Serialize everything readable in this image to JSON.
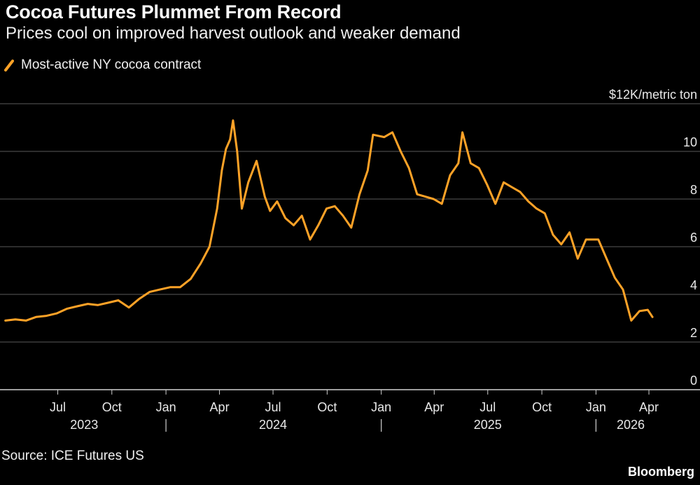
{
  "title": "Cocoa Futures Plummet From Record",
  "subtitle": "Prices cool on improved harvest outlook and weaker demand",
  "source": "Source: ICE Futures US",
  "brand": "Bloomberg",
  "colors": {
    "background": "#000000",
    "series": "#FFA227",
    "grid": "#5a5a5a",
    "text": "#e8e8e8"
  },
  "chart_data": {
    "type": "line",
    "title": "Cocoa Futures Plummet From Record",
    "subtitle": "Prices cool on improved harvest outlook and weaker demand",
    "ylabel": "$12K/metric ton",
    "ylim": [
      0,
      12
    ],
    "yticks": [
      0,
      2,
      4,
      6,
      8,
      10,
      12
    ],
    "ytick_labels": [
      "0",
      "2",
      "4",
      "6",
      "8",
      "10",
      "$12K/metric ton"
    ],
    "xlim": [
      "2023-04-01",
      "2026-05-15"
    ],
    "xticks": [
      {
        "date": "2023-07-01",
        "label": "Jul"
      },
      {
        "date": "2023-10-01",
        "label": "Oct"
      },
      {
        "date": "2024-01-01",
        "label": "Jan"
      },
      {
        "date": "2024-04-01",
        "label": "Apr"
      },
      {
        "date": "2024-07-01",
        "label": "Jul"
      },
      {
        "date": "2024-10-01",
        "label": "Oct"
      },
      {
        "date": "2025-01-01",
        "label": "Jan"
      },
      {
        "date": "2025-04-01",
        "label": "Apr"
      },
      {
        "date": "2025-07-01",
        "label": "Jul"
      },
      {
        "date": "2025-10-01",
        "label": "Oct"
      },
      {
        "date": "2026-01-01",
        "label": "Jan"
      },
      {
        "date": "2026-04-01",
        "label": "Apr"
      }
    ],
    "year_labels": [
      {
        "label": "2023",
        "center": "2023-08-15"
      },
      {
        "label": "2024",
        "center": "2024-07-01"
      },
      {
        "label": "2025",
        "center": "2025-07-01"
      },
      {
        "label": "2026",
        "center": "2026-03-01"
      }
    ],
    "year_dividers": [
      "2024-01-01",
      "2025-01-01",
      "2026-01-01"
    ],
    "series": [
      {
        "name": "Most-active NY cocoa contract",
        "x": [
          "2023-04-03",
          "2023-04-20",
          "2023-05-08",
          "2023-05-25",
          "2023-06-12",
          "2023-06-29",
          "2023-07-17",
          "2023-08-03",
          "2023-08-21",
          "2023-09-07",
          "2023-09-25",
          "2023-10-12",
          "2023-10-30",
          "2023-11-16",
          "2023-12-04",
          "2023-12-21",
          "2024-01-08",
          "2024-01-25",
          "2024-02-12",
          "2024-02-29",
          "2024-03-15",
          "2024-03-28",
          "2024-04-05",
          "2024-04-12",
          "2024-04-19",
          "2024-04-24",
          "2024-05-01",
          "2024-05-09",
          "2024-05-20",
          "2024-06-03",
          "2024-06-17",
          "2024-06-26",
          "2024-07-08",
          "2024-07-22",
          "2024-08-05",
          "2024-08-19",
          "2024-09-02",
          "2024-09-16",
          "2024-09-30",
          "2024-10-14",
          "2024-10-28",
          "2024-11-11",
          "2024-11-25",
          "2024-12-09",
          "2024-12-18",
          "2025-01-06",
          "2025-01-20",
          "2025-02-03",
          "2025-02-17",
          "2025-03-03",
          "2025-03-17",
          "2025-03-31",
          "2025-04-14",
          "2025-04-28",
          "2025-05-12",
          "2025-05-19",
          "2025-06-02",
          "2025-06-16",
          "2025-06-30",
          "2025-07-14",
          "2025-07-28",
          "2025-08-11",
          "2025-08-25",
          "2025-09-08",
          "2025-09-22",
          "2025-10-06",
          "2025-10-20",
          "2025-11-03",
          "2025-11-17",
          "2025-12-01",
          "2025-12-15",
          "2026-01-05",
          "2026-01-19",
          "2026-02-02",
          "2026-02-16",
          "2026-03-02",
          "2026-03-16",
          "2026-03-30",
          "2026-04-07"
        ],
        "values": [
          2.9,
          2.95,
          2.9,
          3.05,
          3.1,
          3.2,
          3.4,
          3.5,
          3.6,
          3.55,
          3.65,
          3.75,
          3.45,
          3.8,
          4.1,
          4.2,
          4.3,
          4.3,
          4.65,
          5.3,
          6.0,
          7.6,
          9.2,
          10.1,
          10.5,
          11.3,
          10.0,
          7.6,
          8.7,
          9.6,
          8.1,
          7.5,
          7.9,
          7.2,
          6.9,
          7.3,
          6.3,
          6.9,
          7.6,
          7.7,
          7.3,
          6.8,
          8.2,
          9.2,
          10.7,
          10.6,
          10.8,
          10.0,
          9.3,
          8.2,
          8.1,
          8.0,
          7.8,
          9.0,
          9.5,
          10.8,
          9.5,
          9.3,
          8.6,
          7.8,
          8.7,
          8.5,
          8.3,
          7.9,
          7.6,
          7.4,
          6.5,
          6.1,
          6.6,
          5.5,
          6.3,
          6.3,
          5.5,
          4.7,
          4.2,
          2.9,
          3.3,
          3.35,
          3.05
        ]
      }
    ]
  },
  "legend": {
    "items": [
      {
        "label": "Most-active NY cocoa contract",
        "color": "#FFA227"
      }
    ]
  }
}
